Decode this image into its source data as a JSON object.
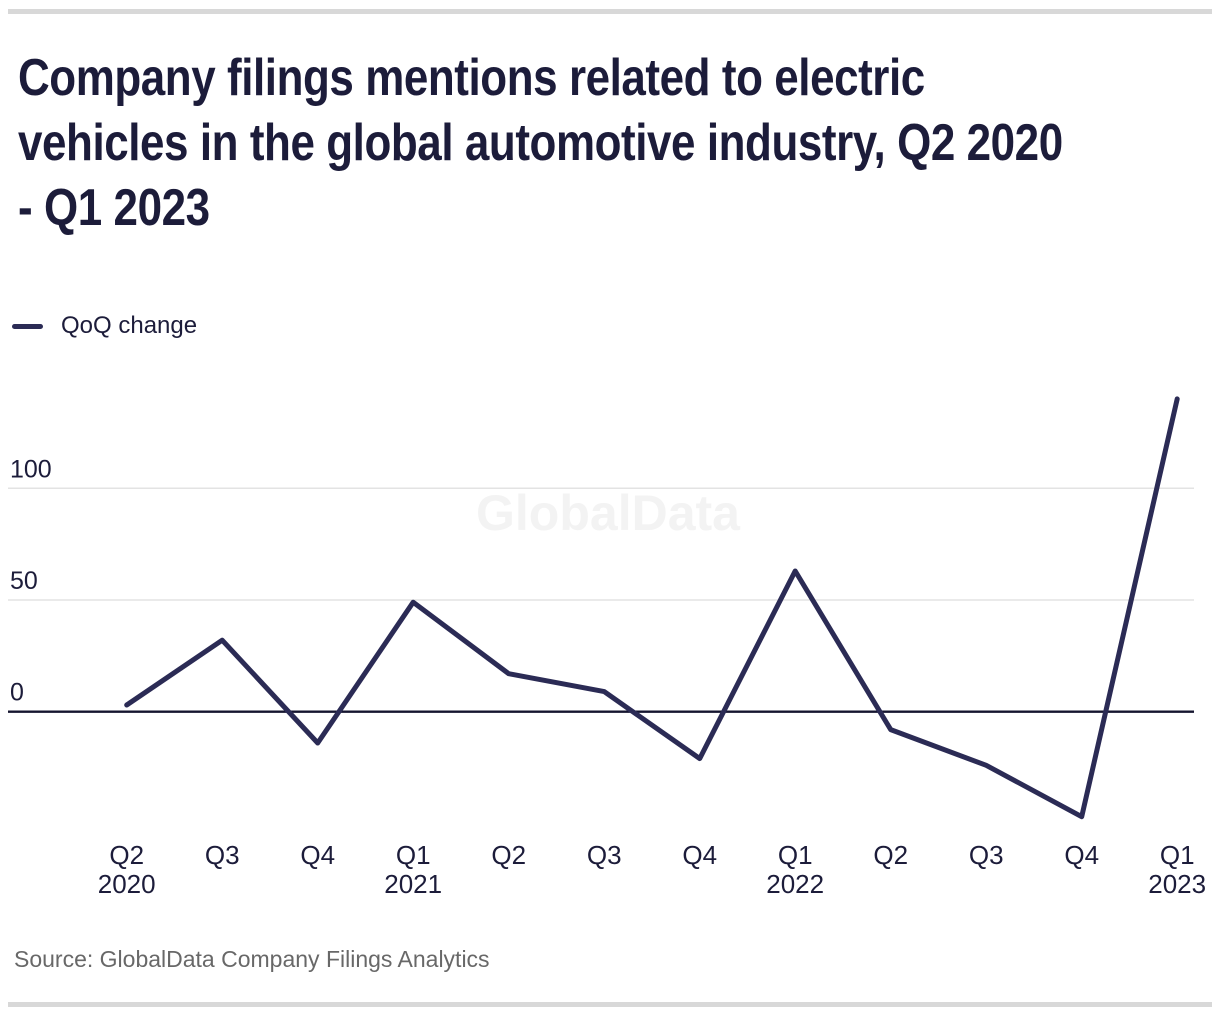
{
  "title_lines": [
    "Company filings mentions related to electric",
    "vehicles in the global automotive industry, Q2 2020",
    "- Q1 2023"
  ],
  "legend": {
    "label": "QoQ change"
  },
  "watermark": "GlobalData",
  "source": {
    "text": "Source: GlobalData Company Filings Analytics"
  },
  "colors": {
    "ink": "#1c1c3a",
    "line": "#2b2b55",
    "axis": "#15152f",
    "grid": "#e3e3e3",
    "muted": "#686868",
    "divider_bar": "#d8d8d8",
    "watermark": "#f3f3f3"
  },
  "chart_data": {
    "type": "line",
    "title": "Company filings mentions related to electric vehicles in the global automotive industry, Q2 2020 - Q1 2023",
    "categories": [
      "Q2 2020",
      "Q3 2020",
      "Q4 2020",
      "Q1 2021",
      "Q2 2021",
      "Q3 2021",
      "Q4 2021",
      "Q1 2022",
      "Q2 2022",
      "Q3 2022",
      "Q4 2022",
      "Q1 2023"
    ],
    "x_tick_lines": [
      {
        "quarter": "Q2",
        "year": "2020"
      },
      {
        "quarter": "Q3",
        "year": ""
      },
      {
        "quarter": "Q4",
        "year": ""
      },
      {
        "quarter": "Q1",
        "year": "2021"
      },
      {
        "quarter": "Q2",
        "year": ""
      },
      {
        "quarter": "Q3",
        "year": ""
      },
      {
        "quarter": "Q4",
        "year": ""
      },
      {
        "quarter": "Q1",
        "year": "2022"
      },
      {
        "quarter": "Q2",
        "year": ""
      },
      {
        "quarter": "Q3",
        "year": ""
      },
      {
        "quarter": "Q4",
        "year": ""
      },
      {
        "quarter": "Q1",
        "year": "2023"
      }
    ],
    "series": [
      {
        "name": "QoQ change",
        "values": [
          3,
          32,
          -14,
          49,
          17,
          9,
          -21,
          63,
          -8,
          -24,
          -47,
          140
        ]
      }
    ],
    "y_ticks": [
      0,
      50,
      100
    ],
    "ylim": [
      -60,
      145
    ],
    "grid": "horizontal",
    "legend_position": "top-left",
    "xlabel": "",
    "ylabel": "",
    "source": "Source: GlobalData Company Filings Analytics",
    "watermark": "GlobalData"
  }
}
